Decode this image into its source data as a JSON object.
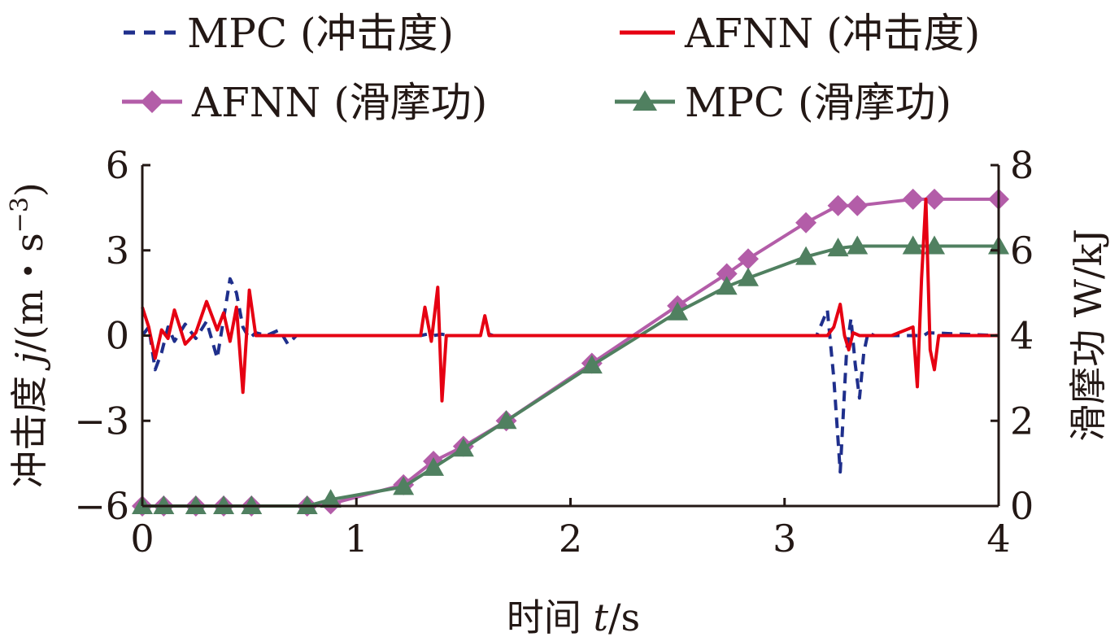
{
  "chart_data": {
    "type": "line",
    "xlabel_prefix": "时间 ",
    "xlabel_var": "t",
    "xlabel_unit": "/s",
    "ylabel_left_prefix": "冲击度 ",
    "ylabel_left_var": "j",
    "ylabel_left_unit": "/(m・s",
    "ylabel_left_exp": "−3",
    "ylabel_left_close": ")",
    "ylabel_right": "滑摩功 W/kJ",
    "xlim": [
      0,
      4
    ],
    "ylim_left": [
      -6,
      6
    ],
    "ylim_right": [
      0,
      8
    ],
    "x_ticks": [
      "0",
      "1",
      "2",
      "3",
      "4"
    ],
    "y_left_ticks": [
      "6",
      "3",
      "0",
      "−3",
      "−6"
    ],
    "y_right_ticks": [
      "8",
      "6",
      "4",
      "2",
      "0"
    ],
    "legend_position": "top",
    "series": [
      {
        "name": "MPC (冲击度)",
        "axis": "left",
        "color": "#1f2f8c",
        "style": "dashed",
        "marker": "none",
        "x": [
          0,
          0.03,
          0.06,
          0.09,
          0.12,
          0.15,
          0.2,
          0.25,
          0.3,
          0.35,
          0.38,
          0.41,
          0.44,
          0.47,
          0.5,
          0.53,
          0.58,
          0.64,
          0.68,
          0.72,
          1.3,
          1.33,
          1.36,
          1.4,
          1.43,
          1.6,
          1.62,
          1.64,
          3.15,
          3.2,
          3.23,
          3.26,
          3.29,
          3.31,
          3.33,
          3.35,
          3.37,
          3.39,
          3.42,
          3.5,
          3.65,
          3.67,
          4.0
        ],
        "y": [
          0,
          0.3,
          -1.2,
          -0.6,
          0.3,
          -0.2,
          0.4,
          -0.1,
          0.5,
          -0.8,
          0.6,
          2.0,
          1.5,
          0.3,
          -0.1,
          0.1,
          0,
          0.2,
          -0.3,
          0,
          0,
          0.05,
          0,
          0.05,
          0,
          0,
          0.05,
          0,
          0,
          0.9,
          -1.5,
          -4.8,
          -0.5,
          0.6,
          -1.0,
          -2.2,
          -0.6,
          0.1,
          0,
          0,
          0,
          0.1,
          0
        ]
      },
      {
        "name": "AFNN (冲击度)",
        "axis": "left",
        "color": "#e60012",
        "style": "solid",
        "marker": "none",
        "x": [
          0,
          0.03,
          0.06,
          0.09,
          0.12,
          0.15,
          0.2,
          0.25,
          0.3,
          0.35,
          0.38,
          0.41,
          0.44,
          0.47,
          0.5,
          0.53,
          0.6,
          1.3,
          1.32,
          1.35,
          1.38,
          1.4,
          1.42,
          1.45,
          1.58,
          1.6,
          1.62,
          3.2,
          3.23,
          3.26,
          3.28,
          3.3,
          3.32,
          3.35,
          3.5,
          3.6,
          3.62,
          3.64,
          3.66,
          3.68,
          3.7,
          3.72,
          3.75,
          4.0
        ],
        "y": [
          1.0,
          0.3,
          -0.8,
          0.2,
          -0.1,
          0.9,
          -0.3,
          0.1,
          1.2,
          0.2,
          0.8,
          -0.2,
          1.0,
          -2.0,
          1.6,
          0,
          0,
          0,
          1.0,
          -0.2,
          1.7,
          -2.3,
          0,
          0,
          0,
          0.7,
          0,
          0,
          0.3,
          1.1,
          0,
          -0.5,
          0.1,
          0,
          0,
          0.3,
          -1.8,
          2.0,
          4.8,
          -0.5,
          -1.2,
          0,
          0,
          0
        ]
      },
      {
        "name": "AFNN (滑摩功)",
        "axis": "right",
        "color": "#b35da8",
        "style": "solid",
        "marker": "diamond",
        "x": [
          0,
          0.1,
          0.25,
          0.38,
          0.51,
          0.77,
          0.88,
          1.22,
          1.36,
          1.5,
          1.7,
          2.1,
          2.5,
          2.73,
          2.83,
          3.1,
          3.25,
          3.34,
          3.6,
          3.7,
          4.0
        ],
        "y": [
          0,
          0,
          0,
          0,
          0,
          0,
          0.05,
          0.5,
          1.05,
          1.4,
          2.0,
          3.35,
          4.7,
          5.45,
          5.8,
          6.65,
          7.05,
          7.05,
          7.2,
          7.2,
          7.2
        ]
      },
      {
        "name": "MPC (滑摩功)",
        "axis": "right",
        "color": "#508060",
        "style": "solid",
        "marker": "triangle",
        "x": [
          0,
          0.1,
          0.25,
          0.38,
          0.51,
          0.77,
          0.88,
          1.22,
          1.36,
          1.5,
          1.7,
          2.1,
          2.5,
          2.73,
          2.83,
          3.1,
          3.25,
          3.34,
          3.6,
          3.7,
          4.0
        ],
        "y": [
          0,
          0,
          0,
          0,
          0,
          0,
          0.15,
          0.45,
          0.9,
          1.35,
          2.0,
          3.3,
          4.55,
          5.15,
          5.35,
          5.85,
          6.05,
          6.1,
          6.1,
          6.1,
          6.1
        ]
      }
    ]
  }
}
